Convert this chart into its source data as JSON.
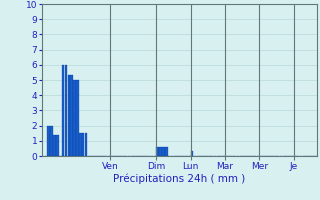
{
  "title": "",
  "xlabel": "Précipitations 24h ( mm )",
  "ylabel": "",
  "background_color": "#d8f0f0",
  "bar_color": "#1a5fc8",
  "bar_edge_color": "#0030a0",
  "grid_color": "#b8d8d8",
  "text_color": "#2020c0",
  "ylim": [
    0,
    10
  ],
  "yticks": [
    0,
    1,
    2,
    3,
    4,
    5,
    6,
    7,
    8,
    9,
    10
  ],
  "day_labels": [
    "Ven",
    "Dim",
    "Lun",
    "Mar",
    "Mer",
    "Je"
  ],
  "day_tick_positions": [
    24,
    40,
    52,
    64,
    76,
    88
  ],
  "num_bars": 96,
  "bar_values": [
    0,
    0,
    2,
    2,
    1.4,
    1.4,
    0,
    6,
    6,
    5.3,
    5.3,
    5,
    5,
    1.5,
    1.5,
    1.5,
    0,
    0,
    0,
    0,
    0,
    0,
    0,
    0,
    0,
    0,
    0,
    0,
    0,
    0,
    0,
    0,
    0,
    0,
    0,
    0,
    0,
    0,
    0,
    0,
    0.6,
    0.6,
    0.6,
    0.6,
    0,
    0,
    0,
    0,
    0,
    0,
    0,
    0,
    0.35,
    0,
    0,
    0,
    0,
    0,
    0,
    0,
    0,
    0,
    0,
    0,
    0,
    0,
    0,
    0,
    0,
    0,
    0,
    0,
    0,
    0,
    0,
    0,
    0,
    0,
    0,
    0,
    0,
    0,
    0,
    0,
    0,
    0,
    0,
    0,
    0,
    0,
    0,
    0,
    0,
    0,
    0,
    0
  ],
  "xlim": [
    0,
    96
  ],
  "vline_color": "#607878",
  "vline_positions": [
    24,
    40,
    52,
    64,
    76,
    88
  ]
}
